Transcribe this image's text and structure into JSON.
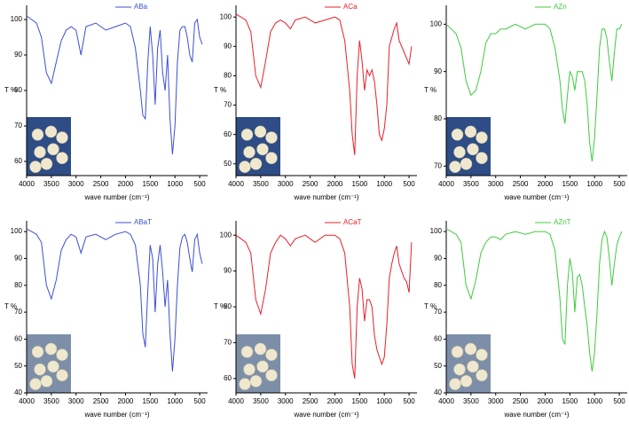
{
  "chart_data": [
    {
      "type": "line",
      "x_label": "wave number (cm⁻¹)",
      "y_label": "T %",
      "x": [
        4000,
        3900,
        3800,
        3700,
        3600,
        3500,
        3400,
        3300,
        3200,
        3100,
        3000,
        2900,
        2800,
        2600,
        2400,
        2200,
        2000,
        1900,
        1800,
        1700,
        1650,
        1600,
        1550,
        1500,
        1450,
        1400,
        1350,
        1300,
        1250,
        1200,
        1150,
        1100,
        1050,
        1000,
        950,
        900,
        850,
        800,
        750,
        700,
        650,
        600,
        550,
        500,
        450
      ],
      "series": [
        {
          "name": "ABa",
          "color": "#3a4fd6",
          "values": [
            101,
            100,
            99,
            95,
            85,
            82,
            88,
            94,
            97,
            98,
            97,
            90,
            98,
            99,
            97,
            98,
            99,
            98,
            92,
            80,
            73,
            72,
            88,
            98,
            90,
            76,
            92,
            97,
            85,
            80,
            90,
            72,
            62,
            70,
            88,
            97,
            98,
            98,
            95,
            90,
            88,
            99,
            100,
            95,
            93
          ]
        }
      ],
      "xlim": [
        4000,
        340
      ],
      "xticks": [
        4000,
        3500,
        3000,
        2500,
        2000,
        1500,
        1000,
        500
      ],
      "ylim": [
        56,
        104
      ],
      "yticks": [
        60,
        70,
        80,
        90,
        100
      ]
    },
    {
      "type": "line",
      "x_label": "wave number (cm⁻¹)",
      "y_label": "T %",
      "x": [
        4000,
        3900,
        3800,
        3700,
        3600,
        3500,
        3400,
        3300,
        3200,
        3100,
        3000,
        2900,
        2800,
        2600,
        2400,
        2200,
        2000,
        1900,
        1800,
        1700,
        1650,
        1600,
        1550,
        1500,
        1450,
        1400,
        1350,
        1300,
        1250,
        1200,
        1150,
        1100,
        1050,
        1000,
        950,
        900,
        850,
        800,
        750,
        700,
        650,
        600,
        550,
        500,
        450
      ],
      "series": [
        {
          "name": "ACa",
          "color": "#e8202a",
          "values": [
            101,
            100,
            99,
            95,
            80,
            76,
            85,
            95,
            98,
            99,
            98,
            96,
            99,
            100,
            98,
            99,
            100,
            99,
            92,
            75,
            60,
            53,
            80,
            92,
            85,
            75,
            82,
            80,
            82,
            78,
            70,
            60,
            58,
            62,
            70,
            90,
            93,
            96,
            98,
            92,
            90,
            88,
            86,
            84,
            90
          ]
        }
      ],
      "xlim": [
        4000,
        340
      ],
      "xticks": [
        4000,
        3500,
        3000,
        2500,
        2000,
        1500,
        1000,
        500
      ],
      "ylim": [
        46,
        104
      ],
      "yticks": [
        50,
        60,
        70,
        80,
        90,
        100
      ]
    },
    {
      "type": "line",
      "x_label": "wave number (cm⁻¹)",
      "y_label": "T %",
      "x": [
        4000,
        3900,
        3800,
        3700,
        3600,
        3500,
        3400,
        3300,
        3200,
        3100,
        3000,
        2900,
        2800,
        2600,
        2400,
        2200,
        2000,
        1900,
        1800,
        1700,
        1650,
        1600,
        1550,
        1500,
        1450,
        1400,
        1350,
        1300,
        1250,
        1200,
        1150,
        1100,
        1050,
        1000,
        950,
        900,
        850,
        800,
        750,
        700,
        650,
        600,
        550,
        500,
        450
      ],
      "series": [
        {
          "name": "AZn",
          "color": "#3dcc3d",
          "values": [
            100,
            99,
            98,
            95,
            88,
            85,
            86,
            90,
            96,
            98,
            98,
            99,
            99,
            100,
            99,
            100,
            100,
            99,
            95,
            88,
            82,
            79,
            85,
            90,
            89,
            86,
            90,
            90,
            90,
            88,
            83,
            75,
            71,
            76,
            85,
            95,
            99,
            99,
            97,
            92,
            88,
            94,
            99,
            99,
            100
          ]
        }
      ],
      "xlim": [
        4000,
        340
      ],
      "xticks": [
        4000,
        3500,
        3000,
        2500,
        2000,
        1500,
        1000,
        500
      ],
      "ylim": [
        68,
        104
      ],
      "yticks": [
        70,
        80,
        90,
        100
      ]
    },
    {
      "type": "line",
      "x_label": "wave number (cm⁻¹)",
      "y_label": "T %",
      "x": [
        4000,
        3900,
        3800,
        3700,
        3600,
        3500,
        3400,
        3300,
        3200,
        3100,
        3000,
        2900,
        2800,
        2600,
        2400,
        2200,
        2000,
        1900,
        1800,
        1700,
        1650,
        1600,
        1550,
        1500,
        1450,
        1400,
        1350,
        1300,
        1250,
        1200,
        1150,
        1100,
        1050,
        1000,
        950,
        900,
        850,
        800,
        750,
        700,
        650,
        600,
        550,
        500,
        450
      ],
      "series": [
        {
          "name": "ABaT",
          "color": "#3a4fd6",
          "values": [
            101,
            100,
            99,
            96,
            80,
            75,
            82,
            93,
            97,
            99,
            98,
            92,
            98,
            99,
            97,
            99,
            100,
            99,
            95,
            80,
            62,
            57,
            78,
            95,
            90,
            70,
            88,
            95,
            85,
            72,
            82,
            62,
            48,
            60,
            80,
            94,
            98,
            99,
            96,
            90,
            85,
            97,
            99,
            92,
            88
          ]
        }
      ],
      "xlim": [
        4000,
        340
      ],
      "xticks": [
        4000,
        3500,
        3000,
        2500,
        2000,
        1500,
        1000,
        500
      ],
      "ylim": [
        40,
        104
      ],
      "yticks": [
        40,
        50,
        60,
        70,
        80,
        90,
        100
      ]
    },
    {
      "type": "line",
      "x_label": "wave number (cm⁻¹)",
      "y_label": "T %",
      "x": [
        4000,
        3900,
        3800,
        3700,
        3600,
        3500,
        3400,
        3300,
        3200,
        3100,
        3000,
        2900,
        2800,
        2600,
        2400,
        2200,
        2000,
        1900,
        1800,
        1700,
        1650,
        1600,
        1550,
        1500,
        1450,
        1400,
        1350,
        1300,
        1250,
        1200,
        1150,
        1100,
        1050,
        1000,
        950,
        900,
        850,
        800,
        750,
        700,
        650,
        600,
        550,
        500,
        450
      ],
      "series": [
        {
          "name": "ACaT",
          "color": "#e8202a",
          "values": [
            100,
            99,
            98,
            95,
            82,
            78,
            85,
            95,
            98,
            100,
            99,
            97,
            99,
            100,
            98,
            100,
            100,
            99,
            95,
            80,
            64,
            60,
            80,
            88,
            85,
            76,
            82,
            82,
            80,
            72,
            68,
            66,
            64,
            66,
            75,
            88,
            92,
            95,
            97,
            92,
            90,
            88,
            87,
            84,
            98
          ]
        }
      ],
      "xlim": [
        4000,
        340
      ],
      "xticks": [
        4000,
        3500,
        3000,
        2500,
        2000,
        1500,
        1000,
        500
      ],
      "ylim": [
        56,
        104
      ],
      "yticks": [
        60,
        70,
        80,
        90,
        100
      ]
    },
    {
      "type": "line",
      "x_label": "wave number (cm⁻¹)",
      "y_label": "T %",
      "x": [
        4000,
        3900,
        3800,
        3700,
        3600,
        3500,
        3400,
        3300,
        3200,
        3100,
        3000,
        2900,
        2800,
        2600,
        2400,
        2200,
        2000,
        1900,
        1800,
        1700,
        1650,
        1600,
        1550,
        1500,
        1450,
        1400,
        1350,
        1300,
        1250,
        1200,
        1150,
        1100,
        1050,
        1000,
        950,
        900,
        850,
        800,
        750,
        700,
        650,
        600,
        550,
        500,
        450
      ],
      "series": [
        {
          "name": "AZnT",
          "color": "#3dcc3d",
          "values": [
            101,
            100,
            99,
            96,
            80,
            75,
            82,
            92,
            96,
            98,
            98,
            97,
            99,
            100,
            99,
            100,
            100,
            99,
            93,
            75,
            60,
            58,
            80,
            90,
            85,
            70,
            83,
            84,
            80,
            72,
            65,
            55,
            48,
            55,
            70,
            88,
            97,
            100,
            98,
            90,
            80,
            88,
            95,
            98,
            100
          ]
        }
      ],
      "xlim": [
        4000,
        340
      ],
      "xticks": [
        4000,
        3500,
        3000,
        2500,
        2000,
        1500,
        1000,
        500
      ],
      "ylim": [
        40,
        104
      ],
      "yticks": [
        40,
        50,
        60,
        70,
        80,
        90,
        100
      ]
    }
  ]
}
